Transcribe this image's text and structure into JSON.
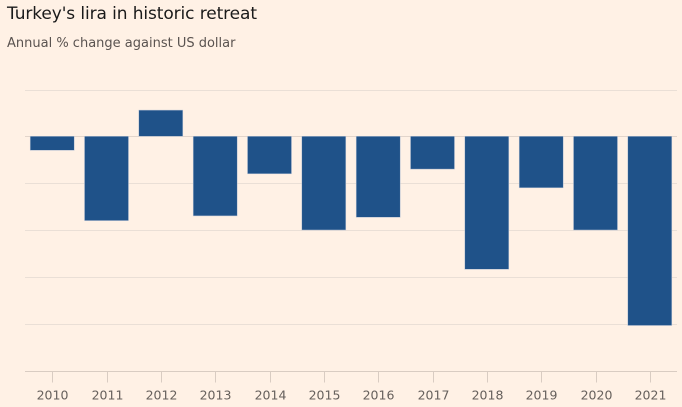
{
  "chart_data": {
    "type": "bar",
    "title": "Turkey's lira in historic retreat",
    "subtitle": "Annual % change against US dollar",
    "xlabel": "",
    "ylabel": "",
    "categories": [
      "2010",
      "2011",
      "2012",
      "2013",
      "2014",
      "2015",
      "2016",
      "2017",
      "2018",
      "2019",
      "2020",
      "2021"
    ],
    "values": [
      -3,
      -18,
      5.6,
      -17,
      -8,
      -20,
      -17.3,
      -7,
      -28.4,
      -11,
      -20,
      -40.4
    ],
    "ylim": [
      -50,
      10
    ],
    "ygrid": [
      10,
      0,
      -10,
      -20,
      -30,
      -40,
      -50
    ],
    "ytick_labels_shown": false,
    "grid": true,
    "legend": "none",
    "colors": {
      "bar": "#1F5289",
      "background": "#FFF1E5"
    }
  }
}
